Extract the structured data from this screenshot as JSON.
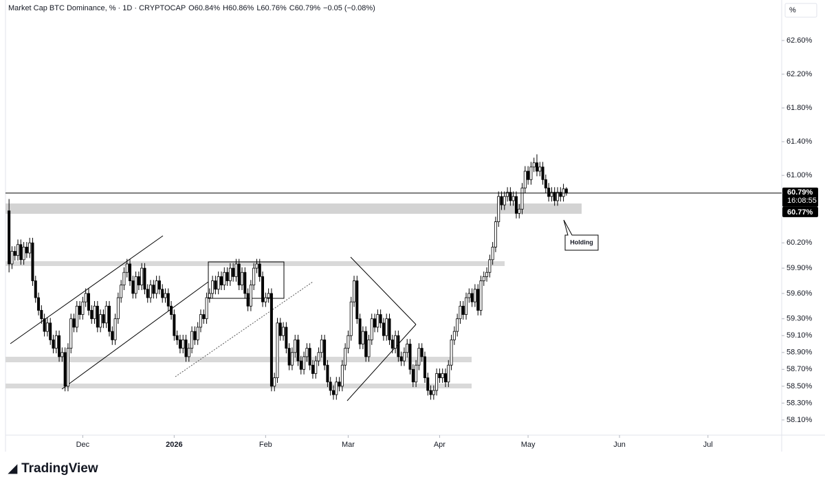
{
  "chart_data": {
    "type": "candlestick",
    "title": "Market Cap BTC Dominance, % · 1D · CRYPTOCAP",
    "ohlc_labels": [
      "O60.84%",
      "H60.86%",
      "L60.76%",
      "C60.79%"
    ],
    "change_label": "−0.05 (−0.08%)",
    "unit_label": "%",
    "brand": "TradingView",
    "annotation": "Holding",
    "countdown": "16:08:55",
    "price_tags": [
      {
        "value": 60.79,
        "label": "60.79%"
      },
      {
        "value": 60.77,
        "label": "60.77%"
      }
    ],
    "up_color": "#ffffff",
    "down_color": "#000000",
    "outline_color": "#000000",
    "ylim": [
      57.92,
      63.08
    ],
    "yticks": [
      {
        "value": 58.1,
        "label": "58.10%"
      },
      {
        "value": 58.3,
        "label": "58.30%"
      },
      {
        "value": 58.5,
        "label": "58.50%"
      },
      {
        "value": 58.7,
        "label": "58.70%"
      },
      {
        "value": 58.9,
        "label": "58.90%"
      },
      {
        "value": 59.1,
        "label": "59.10%"
      },
      {
        "value": 59.3,
        "label": "59.30%"
      },
      {
        "value": 59.6,
        "label": "59.60%"
      },
      {
        "value": 59.9,
        "label": "59.90%"
      },
      {
        "value": 60.2,
        "label": "60.20%"
      },
      {
        "value": 61.0,
        "label": "61.00%"
      },
      {
        "value": 61.4,
        "label": "61.40%"
      },
      {
        "value": 61.8,
        "label": "61.80%"
      },
      {
        "value": 62.2,
        "label": "62.20%"
      },
      {
        "value": 62.6,
        "label": "62.60%"
      }
    ],
    "xlim": [
      -1.2,
      262
    ],
    "xticks": [
      {
        "value": 25,
        "label": "Dec"
      },
      {
        "value": 56,
        "label": "2026"
      },
      {
        "value": 87,
        "label": "Feb"
      },
      {
        "value": 115,
        "label": "Mar"
      },
      {
        "value": 146,
        "label": "Apr"
      },
      {
        "value": 176,
        "label": "May"
      },
      {
        "value": 207,
        "label": "Jun"
      },
      {
        "value": 237,
        "label": "Jul"
      }
    ],
    "candles": [
      [
        60.58,
        60.72,
        59.85,
        59.95
      ],
      [
        59.95,
        60.16,
        59.89,
        60.1
      ],
      [
        60.1,
        60.16,
        59.99,
        60.05
      ],
      [
        60.05,
        60.24,
        59.99,
        60.18
      ],
      [
        60.18,
        60.24,
        59.94,
        60.0
      ],
      [
        60.0,
        60.21,
        59.94,
        60.15
      ],
      [
        60.15,
        60.21,
        60.02,
        60.08
      ],
      [
        60.08,
        60.26,
        60.02,
        60.2
      ],
      [
        60.2,
        60.26,
        59.69,
        59.75
      ],
      [
        59.75,
        59.81,
        59.49,
        59.55
      ],
      [
        59.55,
        59.61,
        59.34,
        59.4
      ],
      [
        59.4,
        59.46,
        59.24,
        59.3
      ],
      [
        59.3,
        59.36,
        59.09,
        59.15
      ],
      [
        59.15,
        59.31,
        59.09,
        59.25
      ],
      [
        59.25,
        59.31,
        58.99,
        59.05
      ],
      [
        59.05,
        59.11,
        58.89,
        58.95
      ],
      [
        58.95,
        59.16,
        58.89,
        59.1
      ],
      [
        59.1,
        59.16,
        58.79,
        58.85
      ],
      [
        58.85,
        58.96,
        58.79,
        58.9
      ],
      [
        58.9,
        58.96,
        58.44,
        58.5
      ],
      [
        58.5,
        59.01,
        58.44,
        58.95
      ],
      [
        58.95,
        59.36,
        58.89,
        59.3
      ],
      [
        59.3,
        59.36,
        59.14,
        59.2
      ],
      [
        59.2,
        59.51,
        59.14,
        59.45
      ],
      [
        59.45,
        59.51,
        59.29,
        59.35
      ],
      [
        59.35,
        59.56,
        59.29,
        59.5
      ],
      [
        59.5,
        59.66,
        59.44,
        59.6
      ],
      [
        59.6,
        59.66,
        59.34,
        59.4
      ],
      [
        59.4,
        59.46,
        59.24,
        59.3
      ],
      [
        59.3,
        59.51,
        59.24,
        59.45
      ],
      [
        59.45,
        59.51,
        59.14,
        59.2
      ],
      [
        59.2,
        59.41,
        59.14,
        59.35
      ],
      [
        59.35,
        59.41,
        59.19,
        59.25
      ],
      [
        59.25,
        59.51,
        59.19,
        59.45
      ],
      [
        59.45,
        59.51,
        59.09,
        59.15
      ],
      [
        59.15,
        59.21,
        58.99,
        59.05
      ],
      [
        59.05,
        59.36,
        58.99,
        59.3
      ],
      [
        59.3,
        59.61,
        59.24,
        59.55
      ],
      [
        59.55,
        59.76,
        59.49,
        59.7
      ],
      [
        59.7,
        59.91,
        59.64,
        59.85
      ],
      [
        59.85,
        60.01,
        59.79,
        59.95
      ],
      [
        59.95,
        60.01,
        59.69,
        59.75
      ],
      [
        59.75,
        59.81,
        59.54,
        59.6
      ],
      [
        59.6,
        59.86,
        59.54,
        59.8
      ],
      [
        59.8,
        59.86,
        59.64,
        59.7
      ],
      [
        59.7,
        59.96,
        59.64,
        59.9
      ],
      [
        59.9,
        59.96,
        59.59,
        59.65
      ],
      [
        59.65,
        59.71,
        59.49,
        59.55
      ],
      [
        59.55,
        59.76,
        59.49,
        59.7
      ],
      [
        59.7,
        59.76,
        59.54,
        59.6
      ],
      [
        59.6,
        59.81,
        59.54,
        59.75
      ],
      [
        59.75,
        59.81,
        59.59,
        59.65
      ],
      [
        59.65,
        59.71,
        59.49,
        59.55
      ],
      [
        59.55,
        59.66,
        59.49,
        59.6
      ],
      [
        59.6,
        59.66,
        59.39,
        59.45
      ],
      [
        59.45,
        59.51,
        59.29,
        59.35
      ],
      [
        59.35,
        59.41,
        59.04,
        59.1
      ],
      [
        59.1,
        59.16,
        58.99,
        59.05
      ],
      [
        59.05,
        59.11,
        58.89,
        58.95
      ],
      [
        58.95,
        59.11,
        58.89,
        59.05
      ],
      [
        59.05,
        59.11,
        58.79,
        58.85
      ],
      [
        58.85,
        59.01,
        58.79,
        58.95
      ],
      [
        58.95,
        59.21,
        58.89,
        59.15
      ],
      [
        59.15,
        59.21,
        58.99,
        59.05
      ],
      [
        59.05,
        59.26,
        58.99,
        59.2
      ],
      [
        59.2,
        59.41,
        59.14,
        59.35
      ],
      [
        59.35,
        59.41,
        59.24,
        59.3
      ],
      [
        59.3,
        59.61,
        59.24,
        59.55
      ],
      [
        59.55,
        59.66,
        59.49,
        59.6
      ],
      [
        59.6,
        59.81,
        59.54,
        59.75
      ],
      [
        59.75,
        59.81,
        59.59,
        59.65
      ],
      [
        59.65,
        59.86,
        59.59,
        59.8
      ],
      [
        59.8,
        59.86,
        59.64,
        59.7
      ],
      [
        59.7,
        59.91,
        59.64,
        59.85
      ],
      [
        59.85,
        59.91,
        59.69,
        59.75
      ],
      [
        59.75,
        59.96,
        59.69,
        59.9
      ],
      [
        59.9,
        59.96,
        59.74,
        59.8
      ],
      [
        59.8,
        60.01,
        59.74,
        59.95
      ],
      [
        59.95,
        60.01,
        59.64,
        59.7
      ],
      [
        59.7,
        59.91,
        59.64,
        59.85
      ],
      [
        59.85,
        59.91,
        59.54,
        59.6
      ],
      [
        59.6,
        59.66,
        59.39,
        59.45
      ],
      [
        59.45,
        59.76,
        59.39,
        59.7
      ],
      [
        59.7,
        59.96,
        59.64,
        59.9
      ],
      [
        59.9,
        60.01,
        59.84,
        59.95
      ],
      [
        59.95,
        60.01,
        59.74,
        59.8
      ],
      [
        59.8,
        59.86,
        59.44,
        59.5
      ],
      [
        59.5,
        59.61,
        59.44,
        59.55
      ],
      [
        59.55,
        59.66,
        59.49,
        59.6
      ],
      [
        59.6,
        59.66,
        58.44,
        58.5
      ],
      [
        58.5,
        58.66,
        58.44,
        58.6
      ],
      [
        58.6,
        59.31,
        58.54,
        59.25
      ],
      [
        59.25,
        59.31,
        59.04,
        59.1
      ],
      [
        59.1,
        59.26,
        59.04,
        59.2
      ],
      [
        59.2,
        59.26,
        58.89,
        58.95
      ],
      [
        58.95,
        59.01,
        58.69,
        58.75
      ],
      [
        58.75,
        58.96,
        58.69,
        58.9
      ],
      [
        58.9,
        59.11,
        58.84,
        59.05
      ],
      [
        59.05,
        59.11,
        58.74,
        58.8
      ],
      [
        58.8,
        58.86,
        58.64,
        58.7
      ],
      [
        58.7,
        58.91,
        58.64,
        58.85
      ],
      [
        58.85,
        59.01,
        58.79,
        58.95
      ],
      [
        58.95,
        59.01,
        58.69,
        58.75
      ],
      [
        58.75,
        58.81,
        58.59,
        58.65
      ],
      [
        58.65,
        58.86,
        58.59,
        58.8
      ],
      [
        58.8,
        58.96,
        58.74,
        58.9
      ],
      [
        58.9,
        59.11,
        58.84,
        59.05
      ],
      [
        59.05,
        59.11,
        58.69,
        58.75
      ],
      [
        58.75,
        58.81,
        58.49,
        58.55
      ],
      [
        58.55,
        58.61,
        58.39,
        58.45
      ],
      [
        58.45,
        58.51,
        58.34,
        58.4
      ],
      [
        58.4,
        58.61,
        58.34,
        58.55
      ],
      [
        58.55,
        58.61,
        58.44,
        58.5
      ],
      [
        58.5,
        58.81,
        58.44,
        58.75
      ],
      [
        58.75,
        59.01,
        58.69,
        58.95
      ],
      [
        58.95,
        59.16,
        58.89,
        59.1
      ],
      [
        59.1,
        59.56,
        59.04,
        59.5
      ],
      [
        59.5,
        59.81,
        59.44,
        59.75
      ],
      [
        59.75,
        59.81,
        59.24,
        59.3
      ],
      [
        59.3,
        59.36,
        58.94,
        59.0
      ],
      [
        59.0,
        59.21,
        58.94,
        59.15
      ],
      [
        59.15,
        59.21,
        58.79,
        58.85
      ],
      [
        58.85,
        59.11,
        58.79,
        59.05
      ],
      [
        59.05,
        59.36,
        58.99,
        59.3
      ],
      [
        59.3,
        59.36,
        59.14,
        59.2
      ],
      [
        59.2,
        59.41,
        59.14,
        59.35
      ],
      [
        59.35,
        59.41,
        59.19,
        59.25
      ],
      [
        59.25,
        59.31,
        59.04,
        59.1
      ],
      [
        59.1,
        59.36,
        59.04,
        59.3
      ],
      [
        59.3,
        59.36,
        58.99,
        59.05
      ],
      [
        59.05,
        59.11,
        58.89,
        58.95
      ],
      [
        58.95,
        59.16,
        58.89,
        59.1
      ],
      [
        59.1,
        59.16,
        58.79,
        58.85
      ],
      [
        58.85,
        58.91,
        58.74,
        58.8
      ],
      [
        58.8,
        58.96,
        58.74,
        58.9
      ],
      [
        58.9,
        59.06,
        58.84,
        59.0
      ],
      [
        59.0,
        59.06,
        58.64,
        58.7
      ],
      [
        58.7,
        58.76,
        58.49,
        58.55
      ],
      [
        58.55,
        58.81,
        58.49,
        58.75
      ],
      [
        58.75,
        59.01,
        58.69,
        58.95
      ],
      [
        58.95,
        59.01,
        58.79,
        58.85
      ],
      [
        58.85,
        58.91,
        58.54,
        58.6
      ],
      [
        58.6,
        58.66,
        58.39,
        58.45
      ],
      [
        58.45,
        58.51,
        58.34,
        58.4
      ],
      [
        58.4,
        58.51,
        58.34,
        58.45
      ],
      [
        58.45,
        58.71,
        58.39,
        58.65
      ],
      [
        58.65,
        58.71,
        58.54,
        58.6
      ],
      [
        58.6,
        58.71,
        58.54,
        58.65
      ],
      [
        58.65,
        58.71,
        58.49,
        58.55
      ],
      [
        58.55,
        58.81,
        58.49,
        58.75
      ],
      [
        58.75,
        59.11,
        58.69,
        59.05
      ],
      [
        59.05,
        59.21,
        58.99,
        59.15
      ],
      [
        59.15,
        59.36,
        59.09,
        59.3
      ],
      [
        59.3,
        59.51,
        59.24,
        59.45
      ],
      [
        59.45,
        59.51,
        59.29,
        59.35
      ],
      [
        59.35,
        59.61,
        59.29,
        59.55
      ],
      [
        59.55,
        59.66,
        59.49,
        59.6
      ],
      [
        59.6,
        59.66,
        59.44,
        59.5
      ],
      [
        59.5,
        59.71,
        59.44,
        59.65
      ],
      [
        59.65,
        59.71,
        59.34,
        59.4
      ],
      [
        59.4,
        59.81,
        59.34,
        59.75
      ],
      [
        59.75,
        59.86,
        59.69,
        59.8
      ],
      [
        59.8,
        59.91,
        59.74,
        59.85
      ],
      [
        59.85,
        60.06,
        59.79,
        60.0
      ],
      [
        60.0,
        60.21,
        59.94,
        60.15
      ],
      [
        60.15,
        60.51,
        60.09,
        60.45
      ],
      [
        60.45,
        60.81,
        60.39,
        60.75
      ],
      [
        60.75,
        60.81,
        60.59,
        60.65
      ],
      [
        60.65,
        60.81,
        60.59,
        60.75
      ],
      [
        60.75,
        60.86,
        60.69,
        60.8
      ],
      [
        60.8,
        60.86,
        60.64,
        60.7
      ],
      [
        60.7,
        60.81,
        60.64,
        60.75
      ],
      [
        60.75,
        60.81,
        60.49,
        60.55
      ],
      [
        60.55,
        60.66,
        60.49,
        60.6
      ],
      [
        60.6,
        60.91,
        60.54,
        60.85
      ],
      [
        60.85,
        61.11,
        60.79,
        61.05
      ],
      [
        61.05,
        61.11,
        60.89,
        60.95
      ],
      [
        60.95,
        61.16,
        60.89,
        61.1
      ],
      [
        61.1,
        61.21,
        61.04,
        61.15
      ],
      [
        61.15,
        61.25,
        60.99,
        61.05
      ],
      [
        61.05,
        61.16,
        60.99,
        61.1
      ],
      [
        61.1,
        61.16,
        60.89,
        60.95
      ],
      [
        60.95,
        61.01,
        60.79,
        60.85
      ],
      [
        60.85,
        60.91,
        60.69,
        60.75
      ],
      [
        60.75,
        60.86,
        60.69,
        60.8
      ],
      [
        60.8,
        60.86,
        60.64,
        60.7
      ],
      [
        60.7,
        60.86,
        60.64,
        60.8
      ],
      [
        60.8,
        60.86,
        60.69,
        60.75
      ],
      [
        60.75,
        60.9,
        60.69,
        60.84
      ],
      [
        60.84,
        60.86,
        60.76,
        60.79
      ]
    ]
  }
}
